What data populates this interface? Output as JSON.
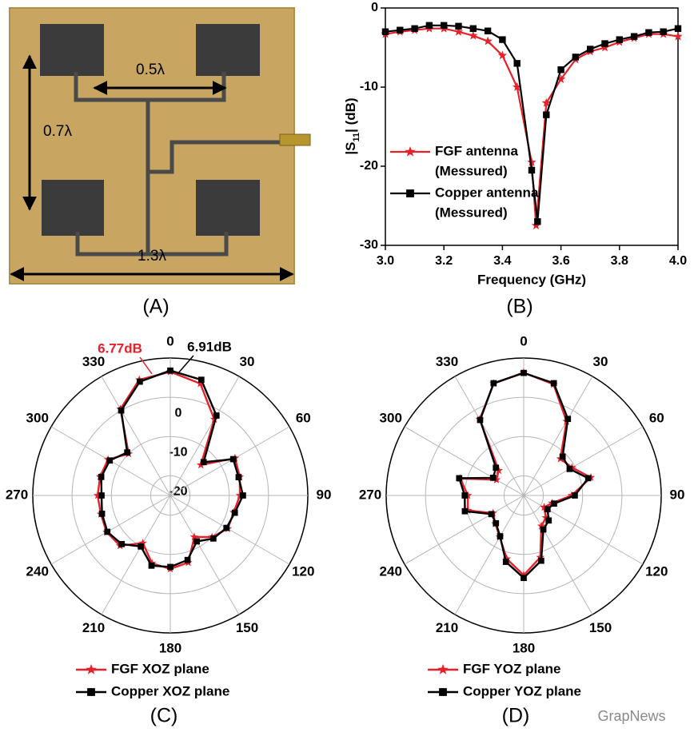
{
  "photo": {
    "labels": [
      "0.5λ",
      "0.7λ",
      "1.3λ"
    ],
    "caption": "(A)"
  },
  "watermark": "GrapNews",
  "chart_data": [
    {
      "type": "line",
      "caption": "(B)",
      "xlabel": "Frequency (GHz)",
      "ylabel": [
        "|S",
        "11",
        "| (dB)"
      ],
      "xlim": [
        3.0,
        4.0
      ],
      "xticks": [
        {
          "value": 3,
          "label": "3.0"
        },
        3.2,
        3.4,
        3.6,
        3.8,
        {
          "value": 4,
          "label": "4.0"
        }
      ],
      "ylim": [
        -30,
        0
      ],
      "yticks": [
        -30,
        -20,
        -10,
        0
      ],
      "series": [
        {
          "name": [
            "FGF antenna",
            "(Messured)"
          ],
          "color": "#e8202a",
          "marker": "star",
          "x": [
            3.0,
            3.05,
            3.1,
            3.15,
            3.2,
            3.25,
            3.3,
            3.35,
            3.4,
            3.45,
            3.5,
            3.515,
            3.55,
            3.6,
            3.65,
            3.7,
            3.75,
            3.8,
            3.85,
            3.9,
            3.95,
            4.0
          ],
          "values": [
            -3.3,
            -3.0,
            -2.8,
            -2.6,
            -2.6,
            -3.0,
            -3.5,
            -4.2,
            -6.0,
            -10.0,
            -19.5,
            -27.5,
            -12.0,
            -9.0,
            -6.5,
            -5.5,
            -5.0,
            -4.3,
            -3.8,
            -3.3,
            -3.3,
            -3.6
          ]
        },
        {
          "name": [
            "Copper antenna",
            "(Messured)"
          ],
          "color": "#000000",
          "marker": "square",
          "x": [
            3.0,
            3.05,
            3.1,
            3.15,
            3.2,
            3.25,
            3.3,
            3.35,
            3.4,
            3.45,
            3.5,
            3.52,
            3.55,
            3.6,
            3.65,
            3.7,
            3.75,
            3.8,
            3.85,
            3.9,
            3.95,
            4.0
          ],
          "values": [
            -3.0,
            -2.8,
            -2.6,
            -2.2,
            -2.2,
            -2.3,
            -2.6,
            -2.9,
            -4.0,
            -7.0,
            -20.5,
            -27.0,
            -13.5,
            -7.8,
            -6.2,
            -5.2,
            -4.5,
            -4.0,
            -3.6,
            -3.1,
            -3.0,
            -2.6
          ]
        }
      ]
    },
    {
      "type": "polar",
      "caption": "(C)",
      "rlim": [
        -25,
        10
      ],
      "rticks": [
        -20,
        -10,
        0
      ],
      "rtick_labels": true,
      "angleticks": [
        0,
        30,
        60,
        90,
        120,
        150,
        180,
        210,
        240,
        270,
        300,
        330
      ],
      "angles": [
        0,
        15,
        30,
        45,
        60,
        75,
        90,
        105,
        120,
        135,
        150,
        165,
        180,
        195,
        210,
        225,
        240,
        255,
        270,
        285,
        300,
        315,
        330,
        345
      ],
      "annotations": [
        {
          "text": "6.77dB",
          "color": "#e8202a"
        },
        {
          "text": "6.91dB",
          "color": "#000000"
        }
      ],
      "series": [
        {
          "name": "FGF XOZ plane",
          "color": "#e8202a",
          "marker": "star",
          "values": [
            6.5,
            4.5,
            -2.6,
            -14,
            -6,
            -6.7,
            -7.3,
            -8.3,
            -8.1,
            -10,
            -12.8,
            -7.3,
            -6.3,
            -7.1,
            -11,
            -6.9,
            -6.3,
            -6.7,
            -6.5,
            -6.5,
            -6.7,
            -10,
            0.4,
            5.5
          ]
        },
        {
          "name": "Copper XOZ plane",
          "color": "#000000",
          "marker": "square",
          "values": [
            6.8,
            5.5,
            -1.5,
            -13,
            -6.5,
            -7,
            -6.5,
            -8,
            -8.5,
            -9.5,
            -11.5,
            -8,
            -6.8,
            -6.5,
            -10,
            -7.5,
            -6.5,
            -7,
            -7.5,
            -6.8,
            -7.2,
            -9.5,
            0,
            5
          ]
        }
      ]
    },
    {
      "type": "polar",
      "caption": "(D)",
      "rlim": [
        -25,
        10
      ],
      "rticks": [
        -20,
        -10,
        0
      ],
      "rtick_labels": false,
      "angleticks": [
        0,
        30,
        60,
        90,
        120,
        150,
        180,
        210,
        240,
        270,
        300,
        330
      ],
      "angles": [
        0,
        15,
        30,
        45,
        60,
        75,
        90,
        105,
        120,
        135,
        150,
        165,
        180,
        195,
        210,
        225,
        240,
        255,
        270,
        285,
        300,
        315,
        330,
        345
      ],
      "series": [
        {
          "name": "FGF YOZ plane",
          "color": "#e8202a",
          "marker": "star",
          "values": [
            6.3,
            4.3,
            -3.2,
            -11.8,
            -10.8,
            -7.3,
            -12.8,
            -17.5,
            -19,
            -17,
            -16,
            -8.7,
            -4.7,
            -8.3,
            -12.8,
            -14.8,
            -16,
            -10.3,
            -10.8,
            -8.3,
            -17,
            -16,
            -2.6,
            4.5
          ]
        },
        {
          "name": "Copper YOZ plane",
          "color": "#000000",
          "marker": "square",
          "values": [
            6.2,
            4.6,
            -2.5,
            -11,
            -11.5,
            -8,
            -12,
            -17,
            -18,
            -16,
            -15,
            -7.8,
            -4,
            -7.5,
            -13,
            -15,
            -15.5,
            -9.5,
            -10,
            -8,
            -16,
            -15,
            -2.8,
            4.6
          ]
        }
      ]
    }
  ]
}
